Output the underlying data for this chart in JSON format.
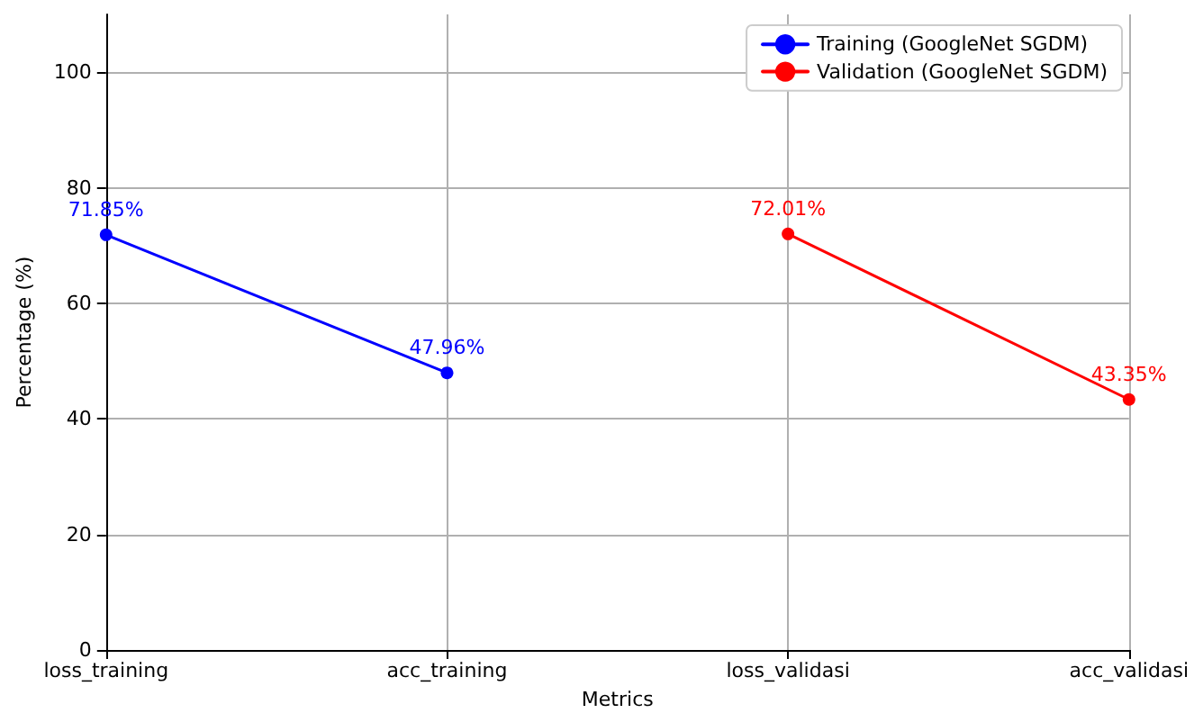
{
  "chart_data": {
    "type": "line",
    "xlabel": "Metrics",
    "ylabel": "Percentage (%)",
    "categories": [
      "loss_training",
      "acc_training",
      "loss_validasi",
      "acc_validasi"
    ],
    "series": [
      {
        "name": "Training (GoogleNet SGDM)",
        "color": "#0000ff",
        "values": [
          71.85,
          47.96,
          null,
          null
        ],
        "value_labels": [
          "71.85%",
          "47.96%",
          null,
          null
        ]
      },
      {
        "name": "Validation (GoogleNet SGDM)",
        "color": "#ff0000",
        "values": [
          null,
          null,
          72.01,
          43.35
        ],
        "value_labels": [
          null,
          null,
          "72.01%",
          "43.35%"
        ]
      }
    ],
    "ylim": [
      0,
      110
    ],
    "yticks": [
      0,
      20,
      40,
      60,
      80,
      100
    ],
    "grid": true,
    "legend": "top right",
    "marker": "circle",
    "line_style": "solid"
  }
}
